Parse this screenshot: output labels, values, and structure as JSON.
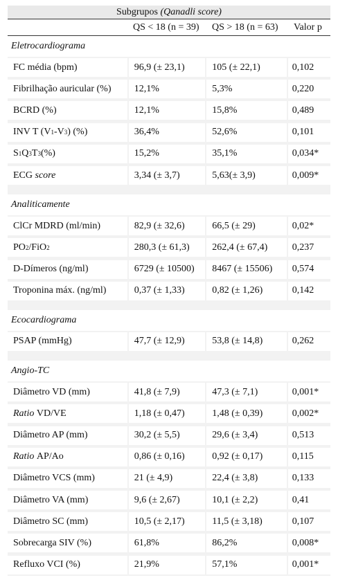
{
  "header": {
    "group": "Subgrupos",
    "group_italic": "(Qanadli score)",
    "col_qs_low": "QS < 18 (n = 39)",
    "col_qs_high": "QS > 18 (n = 63)",
    "col_p": "Valor p"
  },
  "sections": {
    "ecg": "Eletrocardiograma",
    "lab": "Analiticamente",
    "echo": "Ecocardiograma",
    "angio": "Angio-TC"
  },
  "rows": {
    "fc": {
      "label": "FC média (bpm)",
      "a": "96,9 (± 23,1)",
      "b": "105 (± 22,1)",
      "p": "0,102"
    },
    "fa": {
      "label": "Fibrilhação auricular (%)",
      "a": "12,1%",
      "b": "5,3%",
      "p": "0,220"
    },
    "bcrd": {
      "label": "BCRD (%)",
      "a": "12,1%",
      "b": "15,8%",
      "p": "0,489"
    },
    "invt": {
      "label_a": "INV T (V",
      "sub1": "1",
      "label_b": "-V",
      "sub2": "3",
      "label_c": ") (%)",
      "a": "36,4%",
      "b": "52,6%",
      "p": "0,101"
    },
    "sqt": {
      "l1": "S",
      "s1": "1",
      "l2": "Q",
      "s2": "3",
      "l3": "T",
      "s3": "3",
      "l4": " (%)",
      "a": "15,2%",
      "b": "35,1%",
      "p": "0,034*"
    },
    "ecgscore": {
      "label_a": "ECG ",
      "label_b": "score",
      "a": "3,34 (± 3,7)",
      "b": "5,63(± 3,9)",
      "p": "0,009*"
    },
    "clcr": {
      "label": "ClCr MDRD (ml/min)",
      "a": "82,9 (± 32,6)",
      "b": "66,5 (± 29)",
      "p": "0,02*"
    },
    "po2": {
      "l1": "PO",
      "s1": "2",
      "l2": "/FiO",
      "s2": "2",
      "a": "280,3 (± 61,3)",
      "b": "262,4 (± 67,4)",
      "p": "0,237"
    },
    "ddim": {
      "label": "D-Dímeros (ng/ml)",
      "a": "6729 (± 10500)",
      "b": "8467 (± 15506)",
      "p": "0,574"
    },
    "trop": {
      "label": "Troponina máx. (ng/ml)",
      "a": "0,37 (± 1,33)",
      "b": "0,82 (± 1,26)",
      "p": "0,142"
    },
    "psap": {
      "label": "PSAP (mmHg)",
      "a": "47,7 (± 12,9)",
      "b": "53,8 (± 14,8)",
      "p": "0,262"
    },
    "dvd": {
      "label": "Diâmetro VD (mm)",
      "a": "41,8 (± 7,9)",
      "b": "47,3 (± 7,1)",
      "p": "0,001*"
    },
    "rvdve": {
      "label_a": "Ratio",
      "label_b": " VD/VE",
      "a": "1,18 (± 0,47)",
      "b": "1,48 (± 0,39)",
      "p": "0,002*"
    },
    "dap": {
      "label": "Diâmetro AP (mm)",
      "a": "30,2 (± 5,5)",
      "b": "29,6 (± 3,4)",
      "p": "0,513"
    },
    "rapao": {
      "label_a": "Ratio",
      "label_b": " AP/Ao",
      "a": "0,86 (± 0,16)",
      "b": "0,92 (± 0,17)",
      "p": "0,115"
    },
    "dvcs": {
      "label": "Diâmetro VCS (mm)",
      "a": "21 (± 4,9)",
      "b": "22,4 (± 3,8)",
      "p": "0,133"
    },
    "dva": {
      "label": "Diâmetro VA (mm)",
      "a": "9,6 (± 2,67)",
      "b": "10,1 (± 2,2)",
      "p": "0,41"
    },
    "dsc": {
      "label": "Diâmetro SC (mm)",
      "a": "10,5 (± 2,17)",
      "b": "11,5 (± 3,18)",
      "p": "0,107"
    },
    "siv": {
      "label": "Sobrecarga SIV (%)",
      "a": "61,8%",
      "b": "86,2%",
      "p": "0,008*"
    },
    "vci": {
      "label": "Refluxo VCI (%)",
      "a": "21,9%",
      "b": "57,1%",
      "p": "0,001*"
    }
  }
}
